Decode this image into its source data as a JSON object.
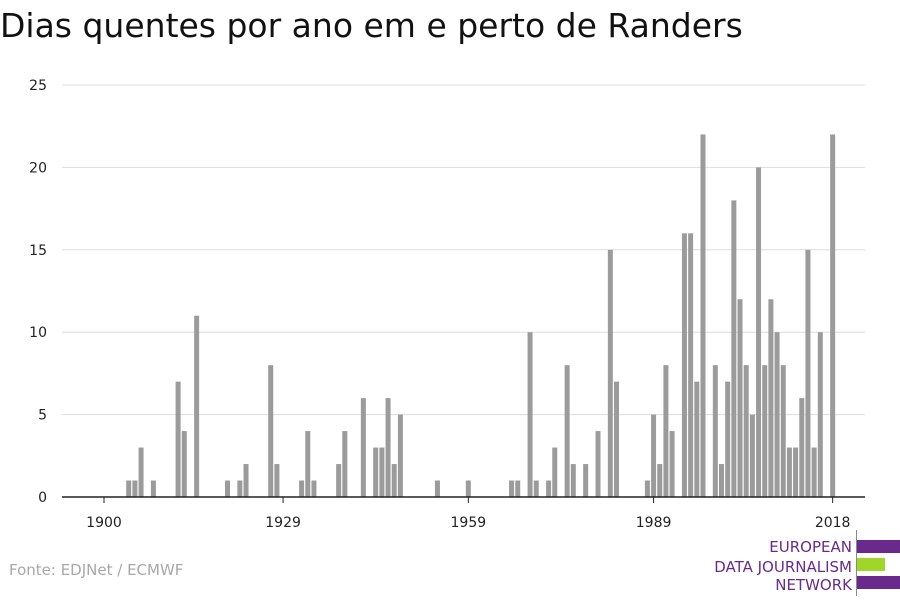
{
  "chart_data": {
    "type": "bar",
    "title": "Dias quentes por ano em e perto de Randers",
    "xlabel": "",
    "ylabel": "",
    "x_range": [
      1900,
      2018
    ],
    "ylim": [
      0,
      25
    ],
    "yticks": [
      0,
      5,
      10,
      15,
      20,
      25
    ],
    "xticks": [
      1900,
      1929,
      1959,
      1989,
      2018
    ],
    "grid": "horizontal",
    "bar_color": "#9b9b9b",
    "values": [
      {
        "year": 1904,
        "value": 1
      },
      {
        "year": 1905,
        "value": 1
      },
      {
        "year": 1906,
        "value": 3
      },
      {
        "year": 1908,
        "value": 1
      },
      {
        "year": 1912,
        "value": 7
      },
      {
        "year": 1913,
        "value": 4
      },
      {
        "year": 1915,
        "value": 11
      },
      {
        "year": 1920,
        "value": 1
      },
      {
        "year": 1922,
        "value": 1
      },
      {
        "year": 1923,
        "value": 2
      },
      {
        "year": 1927,
        "value": 8
      },
      {
        "year": 1928,
        "value": 2
      },
      {
        "year": 1932,
        "value": 1
      },
      {
        "year": 1933,
        "value": 4
      },
      {
        "year": 1934,
        "value": 1
      },
      {
        "year": 1938,
        "value": 2
      },
      {
        "year": 1939,
        "value": 4
      },
      {
        "year": 1942,
        "value": 6
      },
      {
        "year": 1944,
        "value": 3
      },
      {
        "year": 1945,
        "value": 3
      },
      {
        "year": 1946,
        "value": 6
      },
      {
        "year": 1947,
        "value": 2
      },
      {
        "year": 1948,
        "value": 5
      },
      {
        "year": 1954,
        "value": 1
      },
      {
        "year": 1959,
        "value": 1
      },
      {
        "year": 1966,
        "value": 1
      },
      {
        "year": 1967,
        "value": 1
      },
      {
        "year": 1969,
        "value": 10
      },
      {
        "year": 1970,
        "value": 1
      },
      {
        "year": 1972,
        "value": 1
      },
      {
        "year": 1973,
        "value": 3
      },
      {
        "year": 1975,
        "value": 8
      },
      {
        "year": 1976,
        "value": 2
      },
      {
        "year": 1978,
        "value": 2
      },
      {
        "year": 1980,
        "value": 4
      },
      {
        "year": 1982,
        "value": 15
      },
      {
        "year": 1983,
        "value": 7
      },
      {
        "year": 1988,
        "value": 1
      },
      {
        "year": 1989,
        "value": 5
      },
      {
        "year": 1990,
        "value": 2
      },
      {
        "year": 1991,
        "value": 8
      },
      {
        "year": 1992,
        "value": 4
      },
      {
        "year": 1994,
        "value": 16
      },
      {
        "year": 1995,
        "value": 16
      },
      {
        "year": 1996,
        "value": 7
      },
      {
        "year": 1997,
        "value": 22
      },
      {
        "year": 1999,
        "value": 8
      },
      {
        "year": 2000,
        "value": 2
      },
      {
        "year": 2001,
        "value": 7
      },
      {
        "year": 2002,
        "value": 18
      },
      {
        "year": 2003,
        "value": 12
      },
      {
        "year": 2004,
        "value": 8
      },
      {
        "year": 2005,
        "value": 5
      },
      {
        "year": 2006,
        "value": 20
      },
      {
        "year": 2007,
        "value": 8
      },
      {
        "year": 2008,
        "value": 12
      },
      {
        "year": 2009,
        "value": 10
      },
      {
        "year": 2010,
        "value": 8
      },
      {
        "year": 2011,
        "value": 3
      },
      {
        "year": 2012,
        "value": 3
      },
      {
        "year": 2013,
        "value": 6
      },
      {
        "year": 2014,
        "value": 15
      },
      {
        "year": 2015,
        "value": 3
      },
      {
        "year": 2016,
        "value": 10
      },
      {
        "year": 2018,
        "value": 22
      }
    ]
  },
  "footer": {
    "source": "Fonte: EDJNet / ECMWF"
  },
  "logo": {
    "lines": [
      "EUROPEAN",
      "DATA JOURNALISM",
      "NETWORK"
    ],
    "text_color": "#6a2a8c",
    "bar_colors": [
      "#6a2a8c",
      "#a0d62a",
      "#6a2a8c"
    ]
  }
}
